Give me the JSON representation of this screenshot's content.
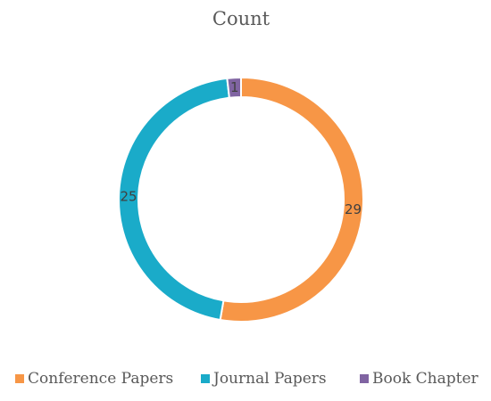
{
  "chart_data": {
    "type": "pie",
    "variant": "donut",
    "title": "Count",
    "categories": [
      "Conference Papers",
      "Journal Papers",
      "Book Chapter"
    ],
    "values": [
      29,
      25,
      1
    ],
    "colors": [
      "#F79646",
      "#1AABC9",
      "#8064A2"
    ],
    "data_labels": [
      "29",
      "25",
      "1"
    ],
    "legend": {
      "position": "bottom",
      "entries": [
        "Conference Papers",
        "Journal Papers",
        "Book Chapter"
      ]
    }
  }
}
